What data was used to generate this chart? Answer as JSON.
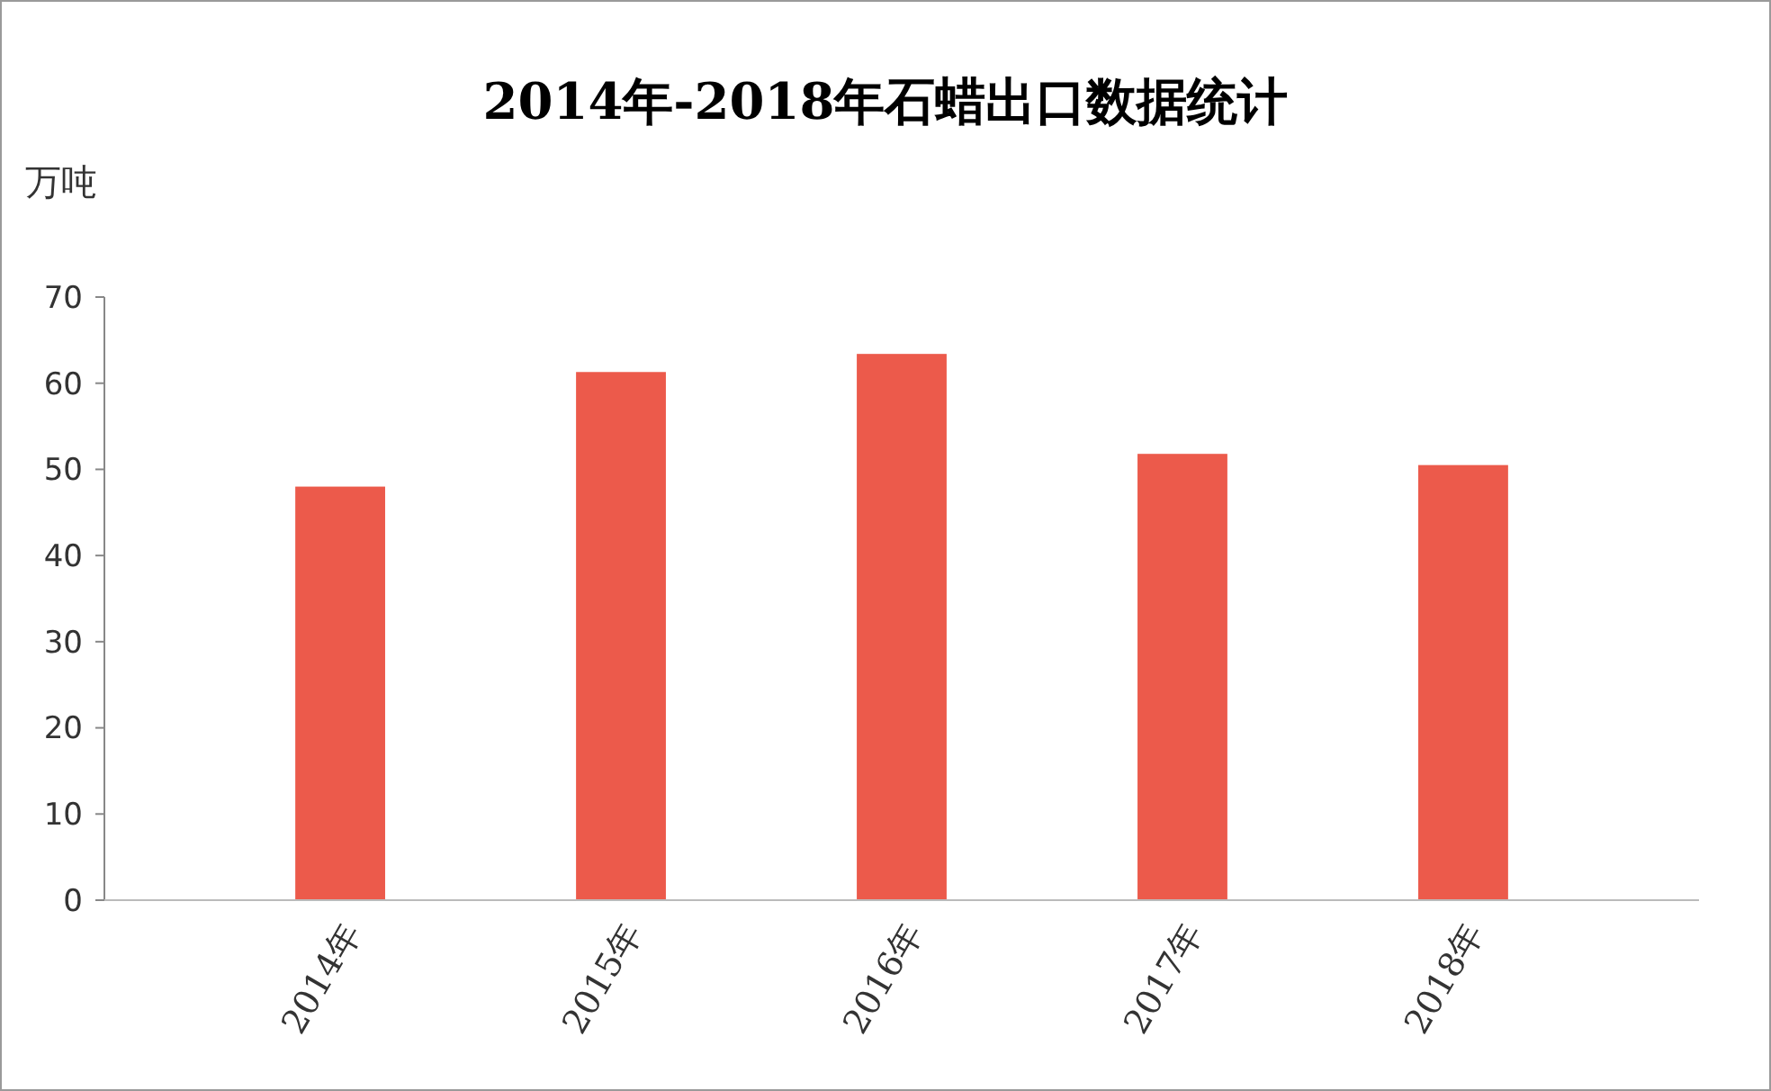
{
  "chart_data": {
    "type": "bar",
    "title": "2014年-2018年石蜡出口数据统计",
    "ylabel": "万吨",
    "categories": [
      "2014年",
      "2015年",
      "2016年",
      "2017年",
      "2018年"
    ],
    "values": [
      48.0,
      61.3,
      63.4,
      51.8,
      50.5
    ],
    "color": "#ec5a4b",
    "ylim": [
      0,
      70
    ],
    "yticks": [
      0,
      10,
      20,
      30,
      40,
      50,
      60,
      70
    ],
    "grid": false
  }
}
